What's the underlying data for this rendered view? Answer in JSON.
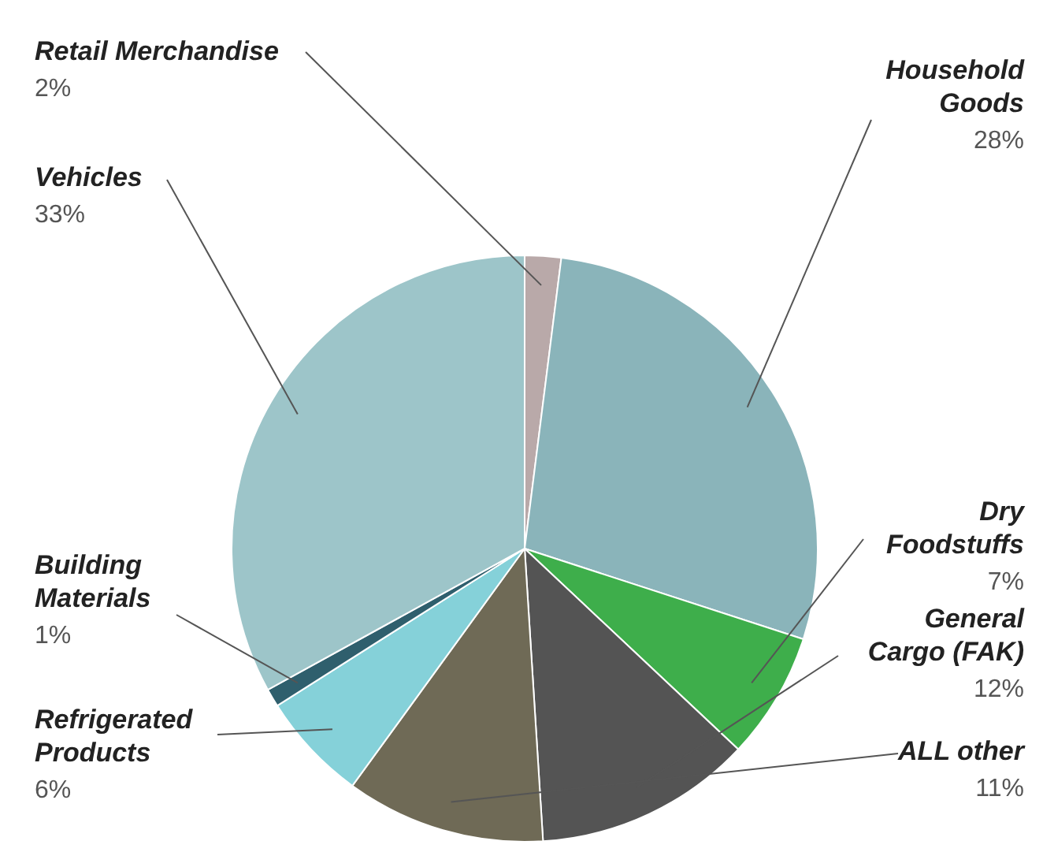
{
  "chart_data": {
    "type": "pie",
    "categories": [
      "Retail Merchandise",
      "Household Goods",
      "Dry Foodstuffs",
      "General Cargo (FAK)",
      "ALL other",
      "Refrigerated Products",
      "Building Materials",
      "Vehicles"
    ],
    "values": [
      2,
      28,
      7,
      12,
      11,
      6,
      1,
      33
    ],
    "colors": [
      "#b9a9a9",
      "#8ab4ba",
      "#3eae4b",
      "#545454",
      "#6f6a56",
      "#85d1d9",
      "#2f5f6d",
      "#9dc5c9"
    ],
    "value_labels": [
      "2%",
      "28%",
      "7%",
      "12%",
      "11%",
      "6%",
      "1%",
      "33%"
    ]
  }
}
